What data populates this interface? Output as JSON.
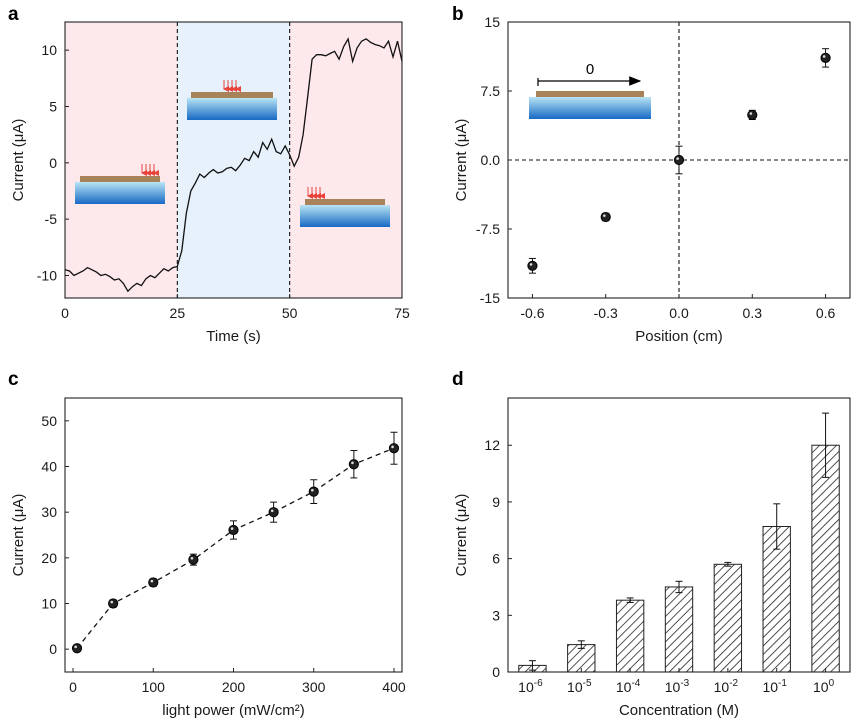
{
  "panels": [
    "a",
    "b",
    "c",
    "d"
  ],
  "colors": {
    "pink_region": "#fde8ec",
    "blue_region": "#e6f1fb",
    "film": "#a8835a",
    "water_top": "#9fd6ee",
    "water_bottom": "#1a73c8",
    "laser": "#e8433a",
    "bar_hatch": "#222222"
  },
  "chart_data": [
    {
      "id": "a",
      "type": "line",
      "xlabel": "Time (s)",
      "ylabel": "Current (μA)",
      "xlim": [
        0,
        75
      ],
      "ylim": [
        -12,
        12.5
      ],
      "xticks": [
        "0",
        "25",
        "50",
        "75"
      ],
      "yticks": [
        "-10",
        "-5",
        "0",
        "5",
        "10"
      ],
      "xtick_values": [
        0,
        25,
        50,
        75
      ],
      "ytick_values": [
        -10,
        -5,
        0,
        5,
        10
      ],
      "regions": [
        {
          "from": 0,
          "to": 25,
          "color": "pink"
        },
        {
          "from": 25,
          "to": 50,
          "color": "blue"
        },
        {
          "from": 50,
          "to": 75,
          "color": "pink"
        }
      ],
      "vlines": [
        25,
        50
      ],
      "x": [
        0,
        1,
        2,
        3,
        4,
        5,
        6,
        7,
        8,
        9,
        10,
        11,
        12,
        13,
        14,
        15,
        16,
        17,
        18,
        19,
        20,
        21,
        22,
        23,
        24,
        25,
        26,
        27,
        28,
        29,
        30,
        31,
        32,
        33,
        34,
        35,
        36,
        37,
        38,
        39,
        40,
        41,
        42,
        43,
        44,
        45,
        46,
        47,
        48,
        49,
        50,
        51,
        52,
        53,
        54,
        55,
        56,
        57,
        58,
        59,
        60,
        61,
        62,
        63,
        64,
        65,
        66,
        67,
        68,
        69,
        70,
        71,
        72,
        73,
        74,
        75
      ],
      "y": [
        -9.5,
        -9.6,
        -10.0,
        -9.8,
        -9.6,
        -9.3,
        -9.5,
        -9.7,
        -10.0,
        -9.9,
        -10.1,
        -10.4,
        -10.3,
        -10.7,
        -11.4,
        -11.0,
        -10.7,
        -10.9,
        -10.3,
        -10.0,
        -10.2,
        -9.8,
        -9.4,
        -9.6,
        -9.3,
        -9.2,
        -7.8,
        -4.5,
        -2.5,
        -1.8,
        -1.0,
        -1.3,
        -0.9,
        -0.6,
        -0.9,
        -0.8,
        -0.5,
        -0.4,
        -0.7,
        -0.2,
        0.4,
        0.2,
        1.0,
        0.5,
        1.8,
        1.2,
        2.1,
        1.0,
        0.8,
        1.5,
        0.7,
        -0.3,
        0.5,
        2.5,
        5.8,
        9.2,
        9.6,
        9.6,
        9.5,
        9.7,
        9.9,
        9.2,
        10.3,
        11.0,
        9.0,
        10.2,
        10.8,
        11.0,
        10.7,
        10.5,
        10.4,
        10.2,
        10.8,
        9.4,
        10.8,
        9.0
      ]
    },
    {
      "id": "b",
      "type": "scatter",
      "xlabel": "Position (cm)",
      "ylabel": "Current (μA)",
      "xlim": [
        -0.7,
        0.7
      ],
      "ylim": [
        -15,
        15
      ],
      "xticks": [
        "-0.6",
        "-0.3",
        "0.0",
        "0.3",
        "0.6"
      ],
      "yticks": [
        "-15",
        "-7.5",
        "0.0",
        "7.5",
        "15"
      ],
      "xtick_values": [
        -0.6,
        -0.3,
        0.0,
        0.3,
        0.6
      ],
      "ytick_values": [
        -15,
        -7.5,
        0,
        7.5,
        15
      ],
      "x": [
        -0.6,
        -0.3,
        0.0,
        0.3,
        0.6
      ],
      "y": [
        -11.5,
        -6.2,
        0.0,
        4.9,
        11.1
      ],
      "yerr": [
        0.8,
        0.4,
        1.5,
        0.5,
        1.0
      ],
      "annotation": "0"
    },
    {
      "id": "c",
      "type": "line",
      "xlabel": "light power (mW/cm²)",
      "ylabel": "Current (μA)",
      "xlim": [
        -10,
        410
      ],
      "ylim": [
        -5,
        55
      ],
      "xticks": [
        "0",
        "100",
        "200",
        "300",
        "400"
      ],
      "yticks": [
        "0",
        "10",
        "20",
        "30",
        "40",
        "50"
      ],
      "xtick_values": [
        0,
        100,
        200,
        300,
        400
      ],
      "ytick_values": [
        0,
        10,
        20,
        30,
        40,
        50
      ],
      "x": [
        5,
        50,
        100,
        150,
        200,
        250,
        300,
        350,
        400
      ],
      "y": [
        0.2,
        10.0,
        14.6,
        19.6,
        26.1,
        30.0,
        34.5,
        40.5,
        44.0
      ],
      "yerr": [
        0.5,
        0.8,
        0.8,
        1.2,
        2.0,
        2.2,
        2.6,
        3.0,
        3.5
      ]
    },
    {
      "id": "d",
      "type": "bar",
      "xlabel": "Concentration (M)",
      "ylabel": "Current (μA)",
      "ylim": [
        0,
        14.5
      ],
      "yticks": [
        "0",
        "3",
        "6",
        "9",
        "12"
      ],
      "ytick_values": [
        0,
        3,
        6,
        9,
        12
      ],
      "categories": [
        {
          "base": "10",
          "exp": "-6"
        },
        {
          "base": "10",
          "exp": "-5"
        },
        {
          "base": "10",
          "exp": "-4"
        },
        {
          "base": "10",
          "exp": "-3"
        },
        {
          "base": "10",
          "exp": "-2"
        },
        {
          "base": "10",
          "exp": "-1"
        },
        {
          "base": "10",
          "exp": "0"
        }
      ],
      "values": [
        0.35,
        1.45,
        3.8,
        4.5,
        5.7,
        7.7,
        12.0
      ],
      "yerr": [
        0.25,
        0.2,
        0.12,
        0.3,
        0.1,
        1.2,
        1.7
      ]
    }
  ]
}
